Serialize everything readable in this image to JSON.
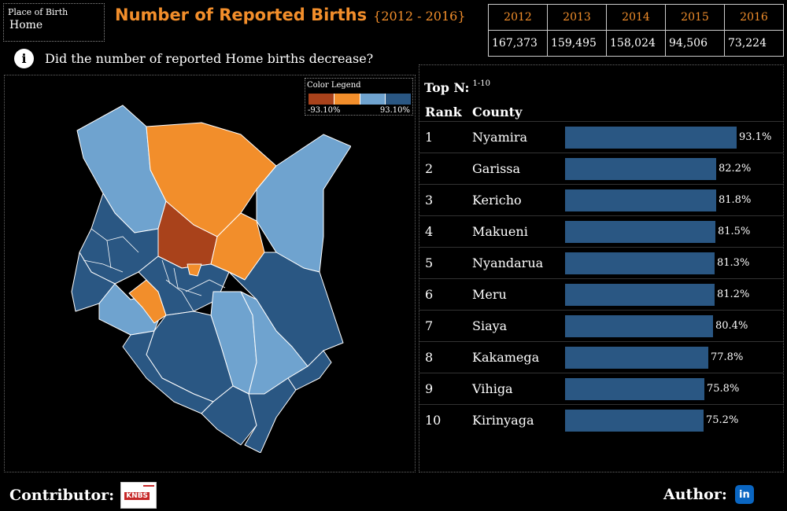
{
  "filter": {
    "label": "Place of Birth",
    "value": "Home"
  },
  "title": {
    "main": "Number of Reported Births",
    "range": "{2012 - 2016}"
  },
  "yearly_births": {
    "years": [
      "2012",
      "2013",
      "2014",
      "2015",
      "2016"
    ],
    "counts": [
      "167,373",
      "159,495",
      "158,024",
      "94,506",
      "73,224"
    ]
  },
  "question": {
    "icon": "info-icon",
    "text": "Did the number of reported Home births decrease?"
  },
  "legend": {
    "title": "Color Legend",
    "min": "-93.10%",
    "max": "93.10%",
    "colors": [
      "#A9421B",
      "#F28E2B",
      "#6FA3CF",
      "#2A5783"
    ]
  },
  "ranking": {
    "topn_label": "Top N:",
    "topn_value": "1-10",
    "rank_header": "Rank",
    "county_header": "County"
  },
  "chart_data": {
    "type": "bar",
    "orientation": "horizontal",
    "categories": [
      "Nyamira",
      "Garissa",
      "Kericho",
      "Makueni",
      "Nyandarua",
      "Meru",
      "Siaya",
      "Kakamega",
      "Vihiga",
      "Kirinyaga"
    ],
    "ranks": [
      "1",
      "2",
      "3",
      "4",
      "5",
      "6",
      "7",
      "8",
      "9",
      "10"
    ],
    "values": [
      93.1,
      82.2,
      81.8,
      81.5,
      81.3,
      81.2,
      80.4,
      77.8,
      75.8,
      75.2
    ],
    "labels": [
      "93.1%",
      "82.2%",
      "81.8%",
      "81.5%",
      "81.3%",
      "81.2%",
      "80.4%",
      "77.8%",
      "75.8%",
      "75.2%"
    ],
    "bar_color": "#2A5783",
    "xlim": [
      0,
      93.1
    ]
  },
  "footer": {
    "contributor": "Contributor:",
    "contributor_logo": "KNBS",
    "author": "Author:",
    "author_icon": "in"
  }
}
